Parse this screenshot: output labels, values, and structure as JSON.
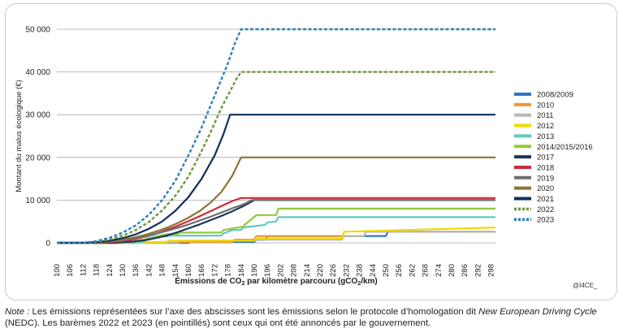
{
  "chart_data": {
    "type": "line",
    "ylabel": "Montant du malus écologique (€)",
    "xlabel_parts": [
      "Émissions de CO",
      "2",
      " par kilomètre parcouru (gCO",
      "2",
      "/km)"
    ],
    "xlim": [
      100,
      300
    ],
    "ylim": [
      0,
      50000
    ],
    "x_ticks": [
      100,
      106,
      112,
      118,
      124,
      130,
      136,
      142,
      148,
      154,
      160,
      166,
      172,
      178,
      184,
      190,
      196,
      202,
      208,
      214,
      220,
      226,
      232,
      238,
      244,
      250,
      256,
      262,
      268,
      274,
      280,
      286,
      292,
      298
    ],
    "y_ticks": [
      0,
      10000,
      20000,
      30000,
      40000,
      50000
    ],
    "y_tick_labels": [
      "0",
      "10 000",
      "20 000",
      "30 000",
      "40 000",
      "50 000"
    ],
    "grid": "horizontal",
    "legend_position": "right",
    "series": [
      {
        "name": "2008/2009",
        "color": "#2f78c4",
        "dash": false,
        "points": [
          [
            100,
            0
          ],
          [
            160,
            0
          ],
          [
            161,
            200
          ],
          [
            190,
            200
          ],
          [
            191,
            750
          ],
          [
            195,
            750
          ],
          [
            196,
            1600
          ],
          [
            250,
            1600
          ],
          [
            251,
            2600
          ],
          [
            300,
            2600
          ]
        ]
      },
      {
        "name": "2010",
        "color": "#f0962e",
        "dash": false,
        "points": [
          [
            100,
            0
          ],
          [
            155,
            0
          ],
          [
            156,
            200
          ],
          [
            180,
            200
          ],
          [
            181,
            750
          ],
          [
            190,
            750
          ],
          [
            191,
            1600
          ],
          [
            240,
            1600
          ],
          [
            241,
            2600
          ],
          [
            300,
            2600
          ]
        ]
      },
      {
        "name": "2011",
        "color": "#b8b8b8",
        "dash": false,
        "points": [
          [
            100,
            0
          ],
          [
            150,
            0
          ],
          [
            151,
            200
          ],
          [
            155,
            200
          ],
          [
            156,
            500
          ],
          [
            190,
            500
          ],
          [
            191,
            750
          ],
          [
            230,
            750
          ],
          [
            231,
            1600
          ],
          [
            240,
            1600
          ],
          [
            241,
            2600
          ],
          [
            300,
            2600
          ]
        ]
      },
      {
        "name": "2012",
        "color": "#f0d800",
        "dash": false,
        "points": [
          [
            100,
            0
          ],
          [
            140,
            0
          ],
          [
            141,
            200
          ],
          [
            150,
            200
          ],
          [
            151,
            500
          ],
          [
            190,
            500
          ],
          [
            191,
            1000
          ],
          [
            230,
            1000
          ],
          [
            231,
            2600
          ],
          [
            300,
            3600
          ]
        ]
      },
      {
        "name": "2013",
        "color": "#63c8c4",
        "dash": false,
        "points": [
          [
            100,
            0
          ],
          [
            135,
            0
          ],
          [
            136,
            100
          ],
          [
            140,
            300
          ],
          [
            141,
            1000
          ],
          [
            145,
            1500
          ],
          [
            150,
            1500
          ],
          [
            151,
            1700
          ],
          [
            175,
            1700
          ],
          [
            176,
            2200
          ],
          [
            180,
            3000
          ],
          [
            184,
            3000
          ],
          [
            185,
            3600
          ],
          [
            195,
            4200
          ],
          [
            196,
            4800
          ],
          [
            200,
            5000
          ],
          [
            201,
            6000
          ],
          [
            300,
            6000
          ]
        ]
      },
      {
        "name": "2014/2015/2016",
        "color": "#93c83c",
        "dash": false,
        "points": [
          [
            100,
            0
          ],
          [
            130,
            0
          ],
          [
            131,
            150
          ],
          [
            135,
            250
          ],
          [
            136,
            500
          ],
          [
            140,
            800
          ],
          [
            141,
            1000
          ],
          [
            145,
            1200
          ],
          [
            146,
            1600
          ],
          [
            150,
            2000
          ],
          [
            155,
            2000
          ],
          [
            156,
            2400
          ],
          [
            175,
            2400
          ],
          [
            176,
            3000
          ],
          [
            185,
            3800
          ],
          [
            186,
            4400
          ],
          [
            191,
            6500
          ],
          [
            200,
            6500
          ],
          [
            201,
            8000
          ],
          [
            300,
            8000
          ]
        ]
      },
      {
        "name": "2017",
        "color": "#1c3558",
        "dash": false,
        "points": [
          [
            100,
            0
          ],
          [
            126,
            0
          ],
          [
            127,
            50
          ],
          [
            135,
            300
          ],
          [
            140,
            600
          ],
          [
            145,
            1100
          ],
          [
            150,
            1700
          ],
          [
            155,
            2500
          ],
          [
            160,
            3400
          ],
          [
            165,
            4300
          ],
          [
            170,
            5300
          ],
          [
            175,
            6300
          ],
          [
            180,
            7400
          ],
          [
            185,
            8600
          ],
          [
            190,
            10000
          ],
          [
            300,
            10000
          ]
        ]
      },
      {
        "name": "2018",
        "color": "#cc2a3b",
        "dash": false,
        "points": [
          [
            100,
            0
          ],
          [
            120,
            0
          ],
          [
            121,
            50
          ],
          [
            130,
            400
          ],
          [
            135,
            800
          ],
          [
            140,
            1400
          ],
          [
            145,
            2100
          ],
          [
            150,
            3000
          ],
          [
            155,
            4000
          ],
          [
            160,
            5100
          ],
          [
            165,
            6200
          ],
          [
            170,
            7400
          ],
          [
            175,
            8600
          ],
          [
            180,
            9800
          ],
          [
            184,
            10500
          ],
          [
            300,
            10500
          ]
        ]
      },
      {
        "name": "2019",
        "color": "#6e6e6e",
        "dash": false,
        "points": [
          [
            100,
            0
          ],
          [
            116,
            0
          ],
          [
            117,
            30
          ],
          [
            125,
            300
          ],
          [
            130,
            600
          ],
          [
            135,
            1000
          ],
          [
            140,
            1500
          ],
          [
            145,
            2100
          ],
          [
            150,
            2800
          ],
          [
            155,
            3500
          ],
          [
            160,
            4300
          ],
          [
            165,
            5200
          ],
          [
            170,
            6100
          ],
          [
            175,
            7100
          ],
          [
            180,
            8100
          ],
          [
            185,
            9000
          ],
          [
            189,
            10000
          ],
          [
            300,
            10000
          ]
        ]
      },
      {
        "name": "2020",
        "color": "#8c7432",
        "dash": false,
        "points": [
          [
            100,
            0
          ],
          [
            110,
            0
          ],
          [
            113,
            30
          ],
          [
            120,
            200
          ],
          [
            125,
            450
          ],
          [
            130,
            800
          ],
          [
            135,
            1250
          ],
          [
            140,
            1850
          ],
          [
            145,
            2600
          ],
          [
            150,
            3500
          ],
          [
            155,
            4600
          ],
          [
            160,
            5900
          ],
          [
            165,
            7400
          ],
          [
            170,
            9400
          ],
          [
            175,
            11900
          ],
          [
            180,
            15700
          ],
          [
            184,
            20000
          ],
          [
            300,
            20000
          ]
        ]
      },
      {
        "name": "2021",
        "color": "#0b2f5c",
        "dash": false,
        "points": [
          [
            100,
            0
          ],
          [
            112,
            0
          ],
          [
            118,
            150
          ],
          [
            124,
            500
          ],
          [
            130,
            1100
          ],
          [
            136,
            2000
          ],
          [
            142,
            3300
          ],
          [
            148,
            5000
          ],
          [
            154,
            7500
          ],
          [
            160,
            10700
          ],
          [
            166,
            15000
          ],
          [
            172,
            20500
          ],
          [
            176,
            25500
          ],
          [
            179,
            30000
          ],
          [
            300,
            30000
          ]
        ]
      },
      {
        "name": "2022",
        "color": "#6a9a3a",
        "dash": true,
        "points": [
          [
            100,
            0
          ],
          [
            112,
            0
          ],
          [
            118,
            250
          ],
          [
            124,
            800
          ],
          [
            130,
            1700
          ],
          [
            136,
            3000
          ],
          [
            142,
            4900
          ],
          [
            148,
            7600
          ],
          [
            154,
            11000
          ],
          [
            160,
            15500
          ],
          [
            166,
            21500
          ],
          [
            170,
            25800
          ],
          [
            175,
            31600
          ],
          [
            179,
            35500
          ],
          [
            182,
            38500
          ],
          [
            184,
            40000
          ],
          [
            300,
            40000
          ]
        ]
      },
      {
        "name": "2023",
        "color": "#2d7fc0",
        "dash": true,
        "points": [
          [
            100,
            0
          ],
          [
            112,
            0
          ],
          [
            118,
            400
          ],
          [
            124,
            1200
          ],
          [
            130,
            2400
          ],
          [
            136,
            4100
          ],
          [
            142,
            6600
          ],
          [
            148,
            10000
          ],
          [
            154,
            14500
          ],
          [
            160,
            20500
          ],
          [
            164,
            24800
          ],
          [
            166,
            27000
          ],
          [
            170,
            32000
          ],
          [
            174,
            37000
          ],
          [
            178,
            42000
          ],
          [
            181,
            46500
          ],
          [
            184,
            50000
          ],
          [
            300,
            50000
          ]
        ]
      }
    ]
  },
  "credit": "@I4CE_",
  "note": {
    "lead": "Note :",
    "text1": " Les émissions représentées sur l’axe des abscisses sont les émissions selon le protocole d’homologation dit ",
    "nedc": "New European Driving Cycle",
    "text2": " (NEDC). Les barèmes 2022 et 2023 (en pointillés) sont ceux qui ont été annoncés par le gouvernement."
  }
}
